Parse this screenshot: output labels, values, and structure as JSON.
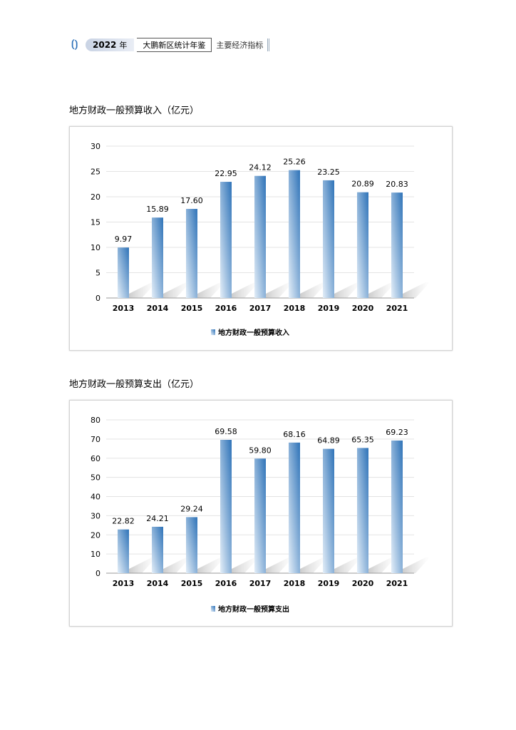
{
  "header": {
    "year": "2022",
    "year_suffix": "年",
    "book": "大鹏新区统计年鉴",
    "section": "主要经济指标"
  },
  "chart_data": [
    {
      "type": "bar",
      "title": "地方财政一般预算收入（亿元）",
      "categories": [
        "2013",
        "2014",
        "2015",
        "2016",
        "2017",
        "2018",
        "2019",
        "2020",
        "2021"
      ],
      "series": [
        {
          "name": "地方财政一般预算收入",
          "values": [
            9.97,
            15.89,
            17.6,
            22.95,
            24.12,
            25.26,
            23.25,
            20.89,
            20.83
          ]
        }
      ],
      "labels": [
        "9.97",
        "15.89",
        "17.60",
        "22.95",
        "24.12",
        "25.26",
        "23.25",
        "20.89",
        "20.83"
      ],
      "yticks": [
        "0",
        "5",
        "10",
        "15",
        "20",
        "25",
        "30"
      ],
      "ylim": [
        0,
        30
      ],
      "grid": true,
      "legend": "bottom",
      "color": "#3a7bbf"
    },
    {
      "type": "bar",
      "title": "地方财政一般预算支出（亿元）",
      "categories": [
        "2013",
        "2014",
        "2015",
        "2016",
        "2017",
        "2018",
        "2019",
        "2020",
        "2021"
      ],
      "series": [
        {
          "name": "地方财政一般预算支出",
          "values": [
            22.82,
            24.21,
            29.24,
            69.58,
            59.8,
            68.16,
            64.89,
            65.35,
            69.23
          ]
        }
      ],
      "labels": [
        "22.82",
        "24.21",
        "29.24",
        "69.58",
        "59.80",
        "68.16",
        "64.89",
        "65.35",
        "69.23"
      ],
      "yticks": [
        "0",
        "10",
        "20",
        "30",
        "40",
        "50",
        "60",
        "70",
        "80"
      ],
      "ylim": [
        0,
        80
      ],
      "grid": true,
      "legend": "bottom",
      "color": "#3a7bbf"
    }
  ]
}
